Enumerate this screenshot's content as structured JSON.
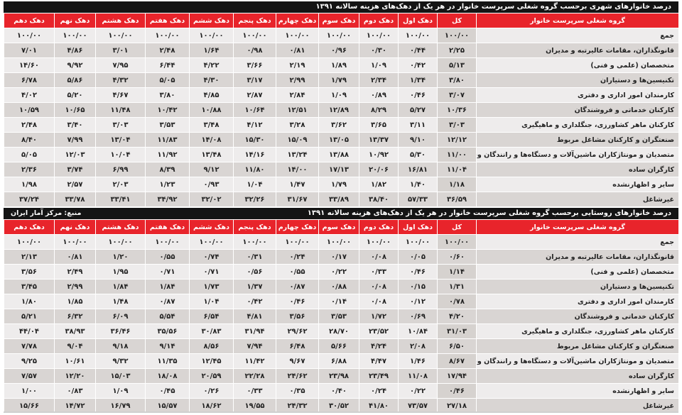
{
  "colors": {
    "header_red": "#e8242b",
    "title_black": "#141414"
  },
  "urban": {
    "title": "درصد خانوارهای شهری برحسب گروه شغلی سرپرست خانوار در هر یک از دهک‌های هزینه سالانه ۱۳۹۱",
    "source": "",
    "headers": [
      "گروه شغلی سرپرست خانوار",
      "کل",
      "دهک اول",
      "دهک دوم",
      "دهک سوم",
      "دهک چهارم",
      "دهک پنجم",
      "دهک ششم",
      "دهک هفتم",
      "دهک هشتم",
      "دهک نهم",
      "دهک دهم"
    ],
    "rows": [
      [
        "جمع",
        "۱۰۰/۰۰",
        "۱۰۰/۰۰",
        "۱۰۰/۰۰",
        "۱۰۰/۰۰",
        "۱۰۰/۰۰",
        "۱۰۰/۰۰",
        "۱۰۰/۰۰",
        "۱۰۰/۰۰",
        "۱۰۰/۰۰",
        "۱۰۰/۰۰",
        "۱۰۰/۰۰"
      ],
      [
        "قانونگذاران، مقامات عالیرتبه و مدیران",
        "۲/۲۵",
        "۰/۴۴",
        "۰/۳۰",
        "۰/۹۶",
        "۰/۸۱",
        "۰/۹۸",
        "۱/۶۴",
        "۲/۴۸",
        "۳/۰۱",
        "۴/۸۶",
        "۷/۰۱"
      ],
      [
        "متخصصان (علمی و فنی)",
        "۵/۱۳",
        "۰/۴۲",
        "۱/۰۹",
        "۱/۸۹",
        "۲/۱۹",
        "۳/۶۶",
        "۴/۲۲",
        "۶/۴۴",
        "۷/۹۵",
        "۹/۹۲",
        "۱۴/۶۰"
      ],
      [
        "تکنیسین‌ها و دستیاران",
        "۳/۸۰",
        "۱/۳۴",
        "۲/۳۴",
        "۱/۷۹",
        "۲/۹۹",
        "۳/۱۷",
        "۴/۳۰",
        "۵/۰۵",
        "۴/۳۲",
        "۵/۸۶",
        "۶/۷۸"
      ],
      [
        "کارمندان امور اداری و دفتری",
        "۳/۰۷",
        "۰/۴۶",
        "۰/۸۹",
        "۱/۰۹",
        "۲/۸۴",
        "۲/۸۷",
        "۴/۸۵",
        "۳/۸۰",
        "۴/۶۷",
        "۵/۲۰",
        "۴/۰۲"
      ],
      [
        "کارکنان خدماتی و فروشندگان",
        "۱۰/۳۶",
        "۵/۲۷",
        "۸/۲۹",
        "۱۲/۸۹",
        "۱۲/۵۱",
        "۱۰/۶۴",
        "۱۰/۸۸",
        "۱۰/۴۲",
        "۱۱/۴۸",
        "۱۰/۶۵",
        "۱۰/۵۹"
      ],
      [
        "کارکنان ماهر کشاورزی، جنگلداری و ماهیگیری",
        "۳/۰۳",
        "۳/۱۱",
        "۳/۶۵",
        "۳/۶۲",
        "۳/۲۸",
        "۴/۱۲",
        "۳/۴۸",
        "۳/۵۳",
        "۳/۰۳",
        "۳/۴۰",
        "۲/۴۸"
      ],
      [
        "صنعتگران و کارکنان مشاغل مربوط",
        "۱۲/۱۲",
        "۹/۱۰",
        "۱۳/۳۷",
        "۱۳/۰۵",
        "۱۵/۰۹",
        "۱۵/۳۰",
        "۱۴/۰۸",
        "۱۱/۸۳",
        "۱۳/۰۴",
        "۷/۹۹",
        "۸/۴۰"
      ],
      [
        "متصدیان و مونتاژکاران ماشین‌آلات و دستگاه‌ها و رانندگان وسایل نقلیه",
        "۱۱/۰۰",
        "۵/۳۰",
        "۱۰/۹۲",
        "۱۳/۸۸",
        "۱۳/۲۴",
        "۱۴/۱۶",
        "۱۳/۴۸",
        "۱۱/۹۲",
        "۱۰/۰۴",
        "۱۲/۰۳",
        "۵/۰۵"
      ],
      [
        "کارگران ساده",
        "۱۱/۰۴",
        "۱۶/۸۱",
        "۲۰/۰۶",
        "۱۷/۱۳",
        "۱۴/۰۰",
        "۱۱/۸۰",
        "۹/۱۲",
        "۸/۳۹",
        "۶/۹۹",
        "۳/۷۴",
        "۲/۳۶"
      ],
      [
        "سایر و اظهارنشده",
        "۱/۱۸",
        "۱/۴۰",
        "۱/۸۲",
        "۱/۷۹",
        "۱/۴۷",
        "۱/۰۴",
        "۰/۹۳",
        "۱/۲۳",
        "۲/۰۳",
        "۲/۵۷",
        "۱/۹۸"
      ],
      [
        "غیرشاغل",
        "۳۶/۵۹",
        "۵۷/۳۳",
        "۳۸/۴۰",
        "۳۳/۸۹",
        "۳۱/۶۷",
        "۳۲/۲۶",
        "۳۲/۰۲",
        "۳۴/۹۲",
        "۳۳/۴۱",
        "۳۳/۷۸",
        "۳۷/۲۴"
      ]
    ]
  },
  "rural": {
    "title": "درصد خانوارهای روستایی برحسب گروه شغلی سرپرست خانوار در هر یک از دهک‌های هزینه سالانه ۱۳۹۱",
    "source": "منبع: مرکز آمار ایران",
    "headers": [
      "گروه شغلی سرپرست خانوار",
      "کل",
      "دهک اول",
      "دهک دوم",
      "دهک سوم",
      "دهک چهارم",
      "دهک پنجم",
      "دهک ششم",
      "دهک هفتم",
      "دهک هشتم",
      "دهک نهم",
      "دهک دهم"
    ],
    "rows": [
      [
        "جمع",
        "۱۰۰/۰۰",
        "۱۰۰/۰۰",
        "۱۰۰/۰۰",
        "۱۰۰/۰۰",
        "۱۰۰/۰۰",
        "۱۰۰/۰۰",
        "۱۰۰/۰۰",
        "۱۰۰/۰۰",
        "۱۰۰/۰۰",
        "۱۰۰/۰۰",
        "۱۰۰/۰۰"
      ],
      [
        "قانونگذاران، مقامات عالیرتبه و مدیران",
        "۰/۶۰",
        "۰/۰۵",
        "۰/۰۸",
        "۰/۱۷",
        "۰/۲۴",
        "۰/۳۱",
        "۰/۷۴",
        "۰/۵۵",
        "۱/۲۰",
        "۰/۸۱",
        "۲/۱۳"
      ],
      [
        "متخصصان (علمی و فنی)",
        "۱/۱۴",
        "۰/۴۶",
        "۰/۳۳",
        "۰/۲۲",
        "۰/۵۵",
        "۰/۵۶",
        "۰/۷۱",
        "۰/۷۱",
        "۱/۹۵",
        "۲/۴۹",
        "۳/۵۶"
      ],
      [
        "تکنیسین‌ها و دستیاران",
        "۱/۳۱",
        "۰/۱۵",
        "۰/۰۸",
        "۰/۸۸",
        "۰/۸۷",
        "۱/۳۷",
        "۱/۷۳",
        "۱/۸۴",
        "۱/۸۴",
        "۲/۹۹",
        "۳/۴۵"
      ],
      [
        "کارمندان امور اداری و دفتری",
        "۰/۷۸",
        "۰/۱۲",
        "۰/۰۸",
        "۰/۱۴",
        "۰/۴۶",
        "۰/۴۲",
        "۱/۰۴",
        "۰/۸۷",
        "۱/۴۸",
        "۱/۸۵",
        "۱/۸۰"
      ],
      [
        "کارکنان خدماتی و فروشندگان",
        "۴/۲۰",
        "۰/۶۹",
        "۱/۷۲",
        "۳/۵۳",
        "۳/۵۶",
        "۴/۸۱",
        "۶/۵۴",
        "۵/۵۴",
        "۶/۰۹",
        "۶/۳۲",
        "۵/۲۱"
      ],
      [
        "کارکنان ماهر کشاورزی، جنگلداری و ماهیگیری",
        "۳۱/۰۳",
        "۱۰/۸۴",
        "۲۳/۵۲",
        "۲۸/۷۰",
        "۲۹/۶۲",
        "۳۱/۹۴",
        "۳۰/۸۳",
        "۳۵/۵۶",
        "۳۶/۴۶",
        "۳۸/۹۳",
        "۴۴/۰۴"
      ],
      [
        "صنعتگران و کارکنان مشاغل مربوط",
        "۶/۵۰",
        "۲/۰۸",
        "۴/۲۴",
        "۵/۶۶",
        "۶/۴۸",
        "۷/۹۴",
        "۸/۵۶",
        "۹/۱۴",
        "۹/۱۸",
        "۹/۰۴",
        "۷/۷۸"
      ],
      [
        "متصدیان و مونتاژکاران ماشین‌آلات و دستگاه‌ها و رانندگان وسایل نقلیه",
        "۸/۶۷",
        "۱/۴۶",
        "۴/۴۷",
        "۶/۸۸",
        "۹/۶۷",
        "۱۱/۴۲",
        "۱۲/۴۵",
        "۱۱/۳۵",
        "۹/۳۲",
        "۱۰/۶۱",
        "۹/۲۵"
      ],
      [
        "کارگران ساده",
        "۱۷/۹۴",
        "۱۱/۰۸",
        "۲۳/۴۹",
        "۲۳/۹۸",
        "۲۴/۶۲",
        "۲۲/۲۸",
        "۲۰/۵۹",
        "۱۸/۰۸",
        "۱۵/۰۳",
        "۱۲/۲۰",
        "۷/۵۷"
      ],
      [
        "سایر و اظهارنشده",
        "۰/۴۶",
        "۰/۲۲",
        "۰/۲۴",
        "۰/۴۰",
        "۰/۳۵",
        "۰/۳۳",
        "۰/۲۶",
        "۰/۴۵",
        "۱/۰۹",
        "۰/۸۳",
        "۱/۰۰"
      ],
      [
        "غیرشاغل",
        "۲۷/۱۸",
        "۷۳/۵۷",
        "۴۱/۸۰",
        "۳۰/۵۲",
        "۲۴/۳۲",
        "۱۹/۵۵",
        "۱۸/۶۲",
        "۱۵/۵۷",
        "۱۶/۷۹",
        "۱۴/۷۲",
        "۱۵/۶۶"
      ]
    ]
  }
}
